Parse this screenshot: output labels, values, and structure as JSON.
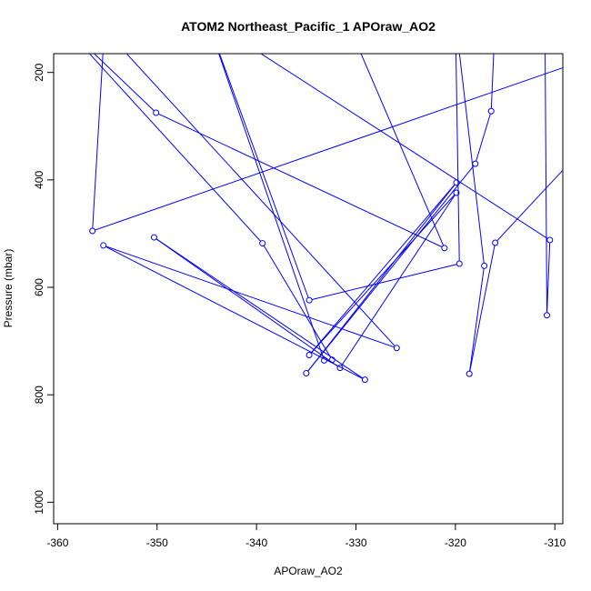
{
  "chart_data": {
    "type": "line",
    "title": "ATOM2 Northeast_Pacific_1 APOraw_AO2",
    "xlabel": "APOraw_AO2",
    "ylabel": "Pressure (mbar)",
    "xlim": [
      -360.4,
      -309.2
    ],
    "ylim": [
      1040,
      165
    ],
    "y_reversed": true,
    "xticks": [
      -360,
      -350,
      -340,
      -330,
      -320,
      -310
    ],
    "yticks": [
      200,
      400,
      600,
      800,
      1000
    ],
    "grid": false,
    "series": [
      {
        "points": [
          [
            -316.0,
            100
          ],
          [
            -316.4,
            272
          ],
          [
            -318.0,
            370
          ],
          [
            -335.0,
            760
          ],
          [
            -319.9,
            405
          ],
          [
            -334.7,
            726
          ],
          [
            -319.9,
            424
          ],
          [
            -331.6,
            750
          ],
          [
            -350.3,
            507
          ],
          [
            -329.1,
            772
          ],
          [
            -355.4,
            522
          ],
          [
            -325.9,
            713
          ],
          [
            -355.3,
            120
          ],
          [
            -356.5,
            495
          ],
          [
            -295.0,
            100
          ],
          [
            -316.0,
            517
          ],
          [
            -318.6,
            761
          ],
          [
            -317.1,
            560
          ],
          [
            -320.0,
            100
          ],
          [
            -319.6,
            556
          ],
          [
            -334.7,
            624
          ],
          [
            -345.0,
            100
          ],
          [
            -331.0,
            100
          ],
          [
            -321.1,
            527
          ],
          [
            -350.1,
            275
          ],
          [
            -360.0,
            100
          ],
          [
            -339.4,
            518
          ],
          [
            -332.4,
            735
          ],
          [
            -333.2,
            736
          ],
          [
            -345.0,
            100
          ],
          [
            -310.5,
            512
          ],
          [
            -310.8,
            652
          ],
          [
            -311.0,
            100
          ],
          [
            -300.0,
            100
          ]
        ]
      }
    ]
  }
}
